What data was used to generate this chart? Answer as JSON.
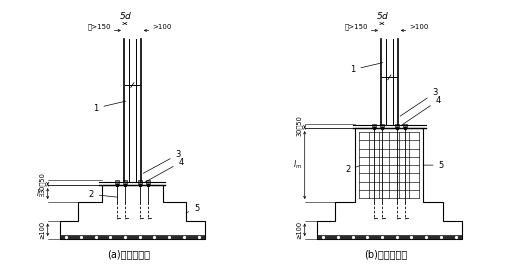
{
  "bg_color": "#ffffff",
  "line_color": "#000000",
  "label_a": "(a)无短柱基础",
  "label_b": "(b)带短柱基础",
  "dim_5d": "5$d$",
  "dim_150": "且>150",
  "dim_100_top": ">100",
  "dim_30_50": "30～50",
  "dim_lm": "$l_{m}$",
  "dim_100_bot": "≥100"
}
